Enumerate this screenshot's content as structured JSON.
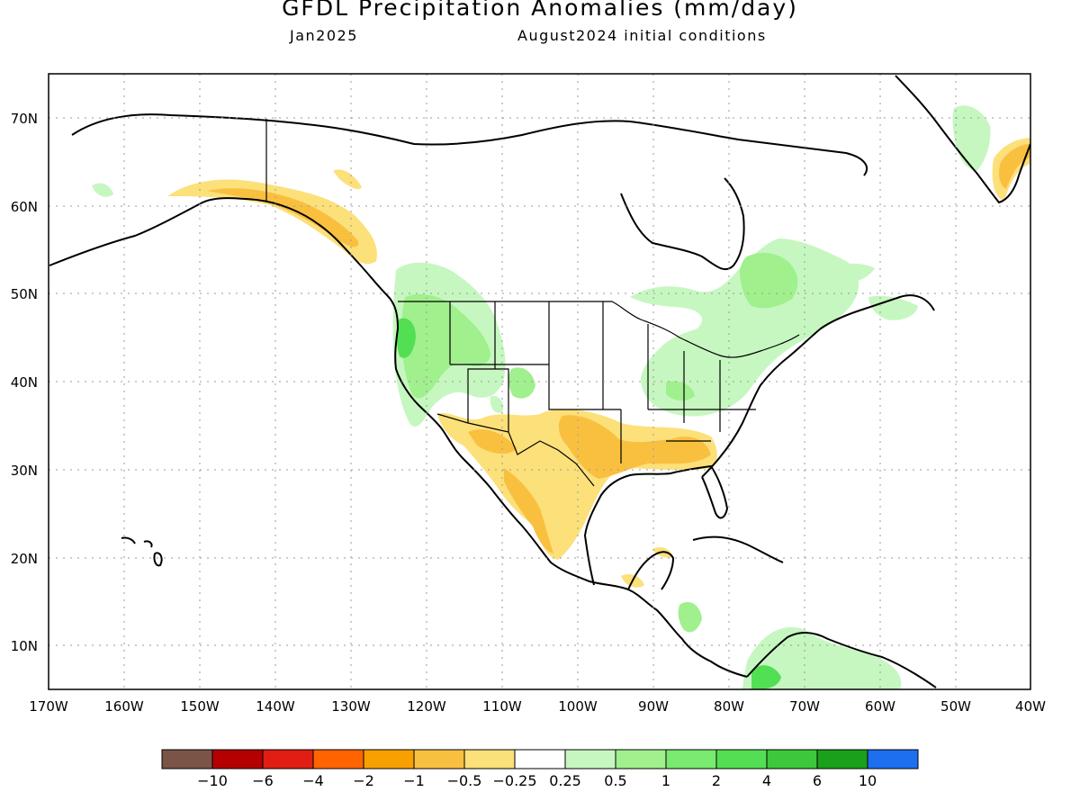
{
  "header": {
    "title": "GFDL Precipitation Anomalies (mm/day)",
    "month": "Jan2025",
    "init": "August2024 initial conditions"
  },
  "axes": {
    "lon_labels": [
      "170W",
      "160W",
      "150W",
      "140W",
      "130W",
      "120W",
      "110W",
      "100W",
      "90W",
      "80W",
      "70W",
      "60W",
      "50W",
      "40W"
    ],
    "lat_labels": [
      "70N",
      "60N",
      "50N",
      "40N",
      "30N",
      "20N",
      "10N"
    ],
    "lon_range": [
      -170,
      -40
    ],
    "lat_range": [
      5,
      75
    ]
  },
  "colorbar": {
    "colors": [
      "#7a5547",
      "#b40000",
      "#e01e14",
      "#ff6400",
      "#f7a000",
      "#f9c040",
      "#fce07a",
      "#ffffff",
      "#c6f7c0",
      "#a0f08e",
      "#7aea70",
      "#53df53",
      "#3cc83c",
      "#1aa01a",
      "#1e6ef0"
    ],
    "labels": [
      "−10",
      "−6",
      "−4",
      "−2",
      "−1",
      "−0.5",
      "−0.25",
      "0.25",
      "0.5",
      "1",
      "2",
      "4",
      "6",
      "10"
    ]
  },
  "colors": {
    "dry_light": "#fce07a",
    "dry_mid": "#f9c040",
    "dry_strong": "#f7a000",
    "wet_light": "#c6f7c0",
    "wet_mid": "#a0f08e",
    "wet_strong": "#53df53",
    "grid": "#9a9a9a",
    "coast": "#000000"
  }
}
